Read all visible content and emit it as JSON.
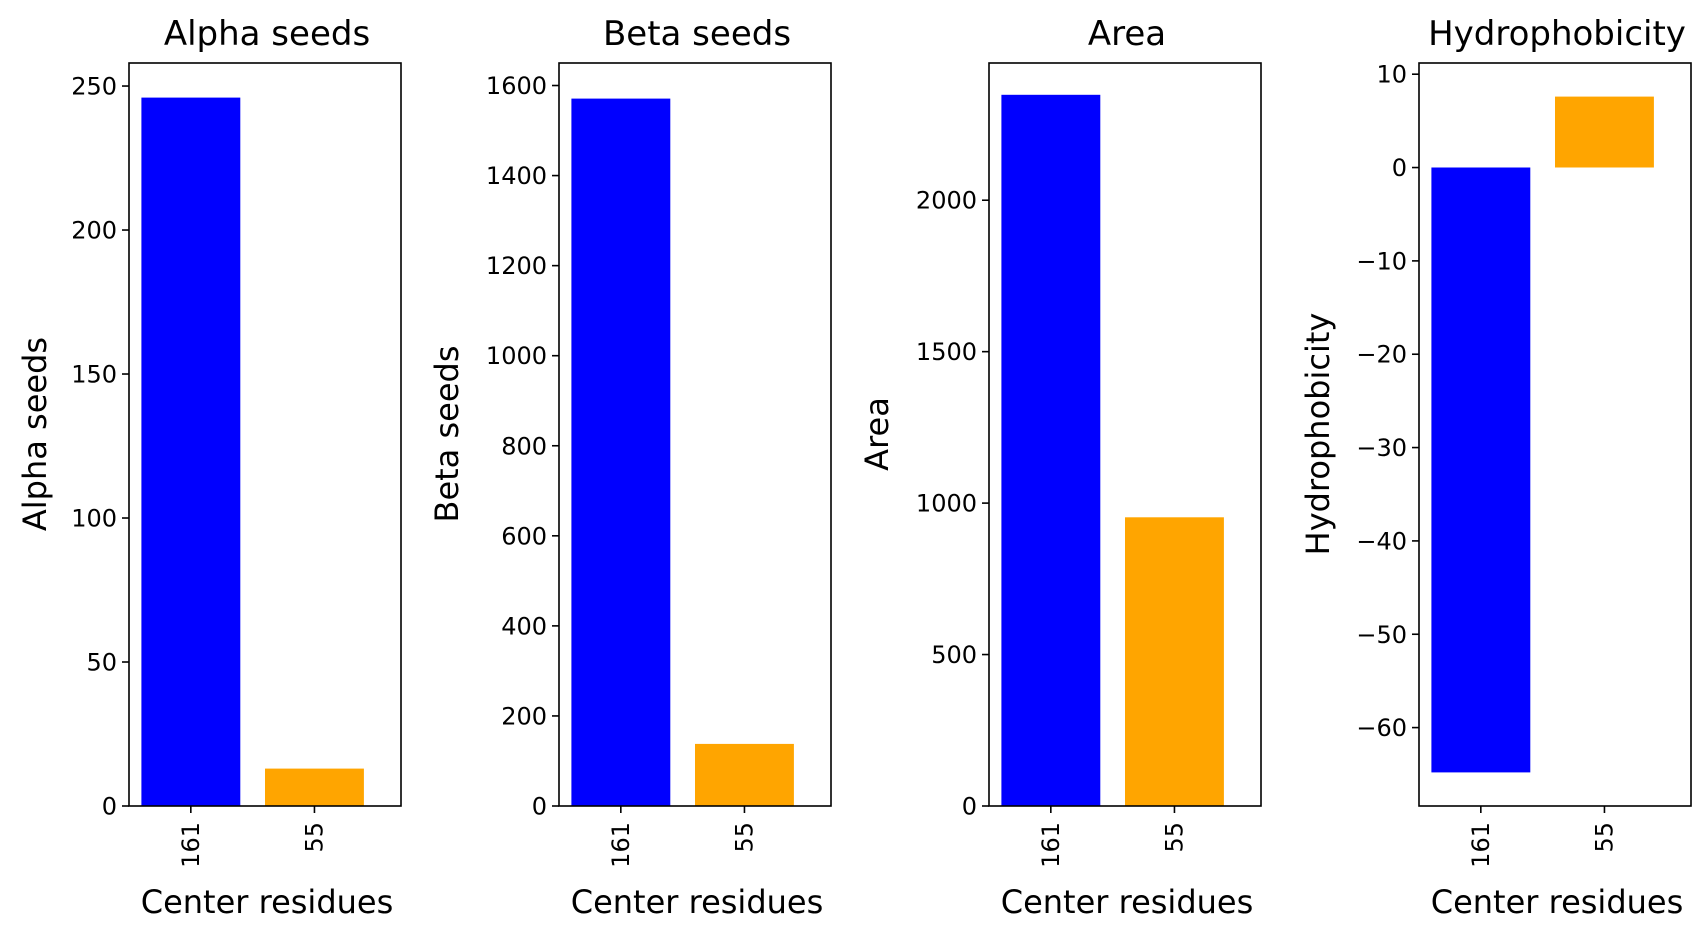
{
  "chart_data": [
    {
      "type": "bar",
      "title": "Alpha seeds",
      "xlabel": "Center residues",
      "ylabel": "Alpha seeds",
      "categories": [
        "161",
        "55"
      ],
      "values": [
        246,
        13
      ],
      "colors": [
        "#0000ff",
        "#ffa500"
      ],
      "ylim": [
        0,
        258
      ],
      "yticks": [
        0,
        50,
        100,
        150,
        200,
        250
      ],
      "yticklabels": [
        "0",
        "50",
        "100",
        "150",
        "200",
        "250"
      ],
      "grid": false,
      "legend": "none"
    },
    {
      "type": "bar",
      "title": "Beta seeds",
      "xlabel": "Center residues",
      "ylabel": "Beta seeds",
      "categories": [
        "161",
        "55"
      ],
      "values": [
        1571,
        138
      ],
      "colors": [
        "#0000ff",
        "#ffa500"
      ],
      "ylim": [
        0,
        1650
      ],
      "yticks": [
        0,
        200,
        400,
        600,
        800,
        1000,
        1200,
        1400,
        1600
      ],
      "yticklabels": [
        "0",
        "200",
        "400",
        "600",
        "800",
        "1000",
        "1200",
        "1400",
        "1600"
      ],
      "grid": false,
      "legend": "none"
    },
    {
      "type": "bar",
      "title": "Area",
      "xlabel": "Center residues",
      "ylabel": "Area",
      "categories": [
        "161",
        "55"
      ],
      "values": [
        2348,
        953
      ],
      "colors": [
        "#0000ff",
        "#ffa500"
      ],
      "ylim": [
        0,
        2453
      ],
      "yticks": [
        0,
        500,
        1000,
        1500,
        2000
      ],
      "yticklabels": [
        "0",
        "500",
        "1000",
        "1500",
        "2000"
      ],
      "grid": false,
      "legend": "none"
    },
    {
      "type": "bar",
      "title": "Hydrophobicity",
      "xlabel": "Center residues",
      "ylabel": "Hydrophobicity",
      "categories": [
        "161",
        "55"
      ],
      "values": [
        -64.8,
        7.6
      ],
      "colors": [
        "#0000ff",
        "#ffa500"
      ],
      "ylim": [
        -68.4,
        11.2
      ],
      "yticks": [
        -60,
        -50,
        -40,
        -30,
        -20,
        -10,
        0,
        10
      ],
      "yticklabels": [
        "−60",
        "−50",
        "−40",
        "−30",
        "−20",
        "−10",
        "0",
        "10"
      ],
      "grid": false,
      "legend": "none"
    }
  ]
}
